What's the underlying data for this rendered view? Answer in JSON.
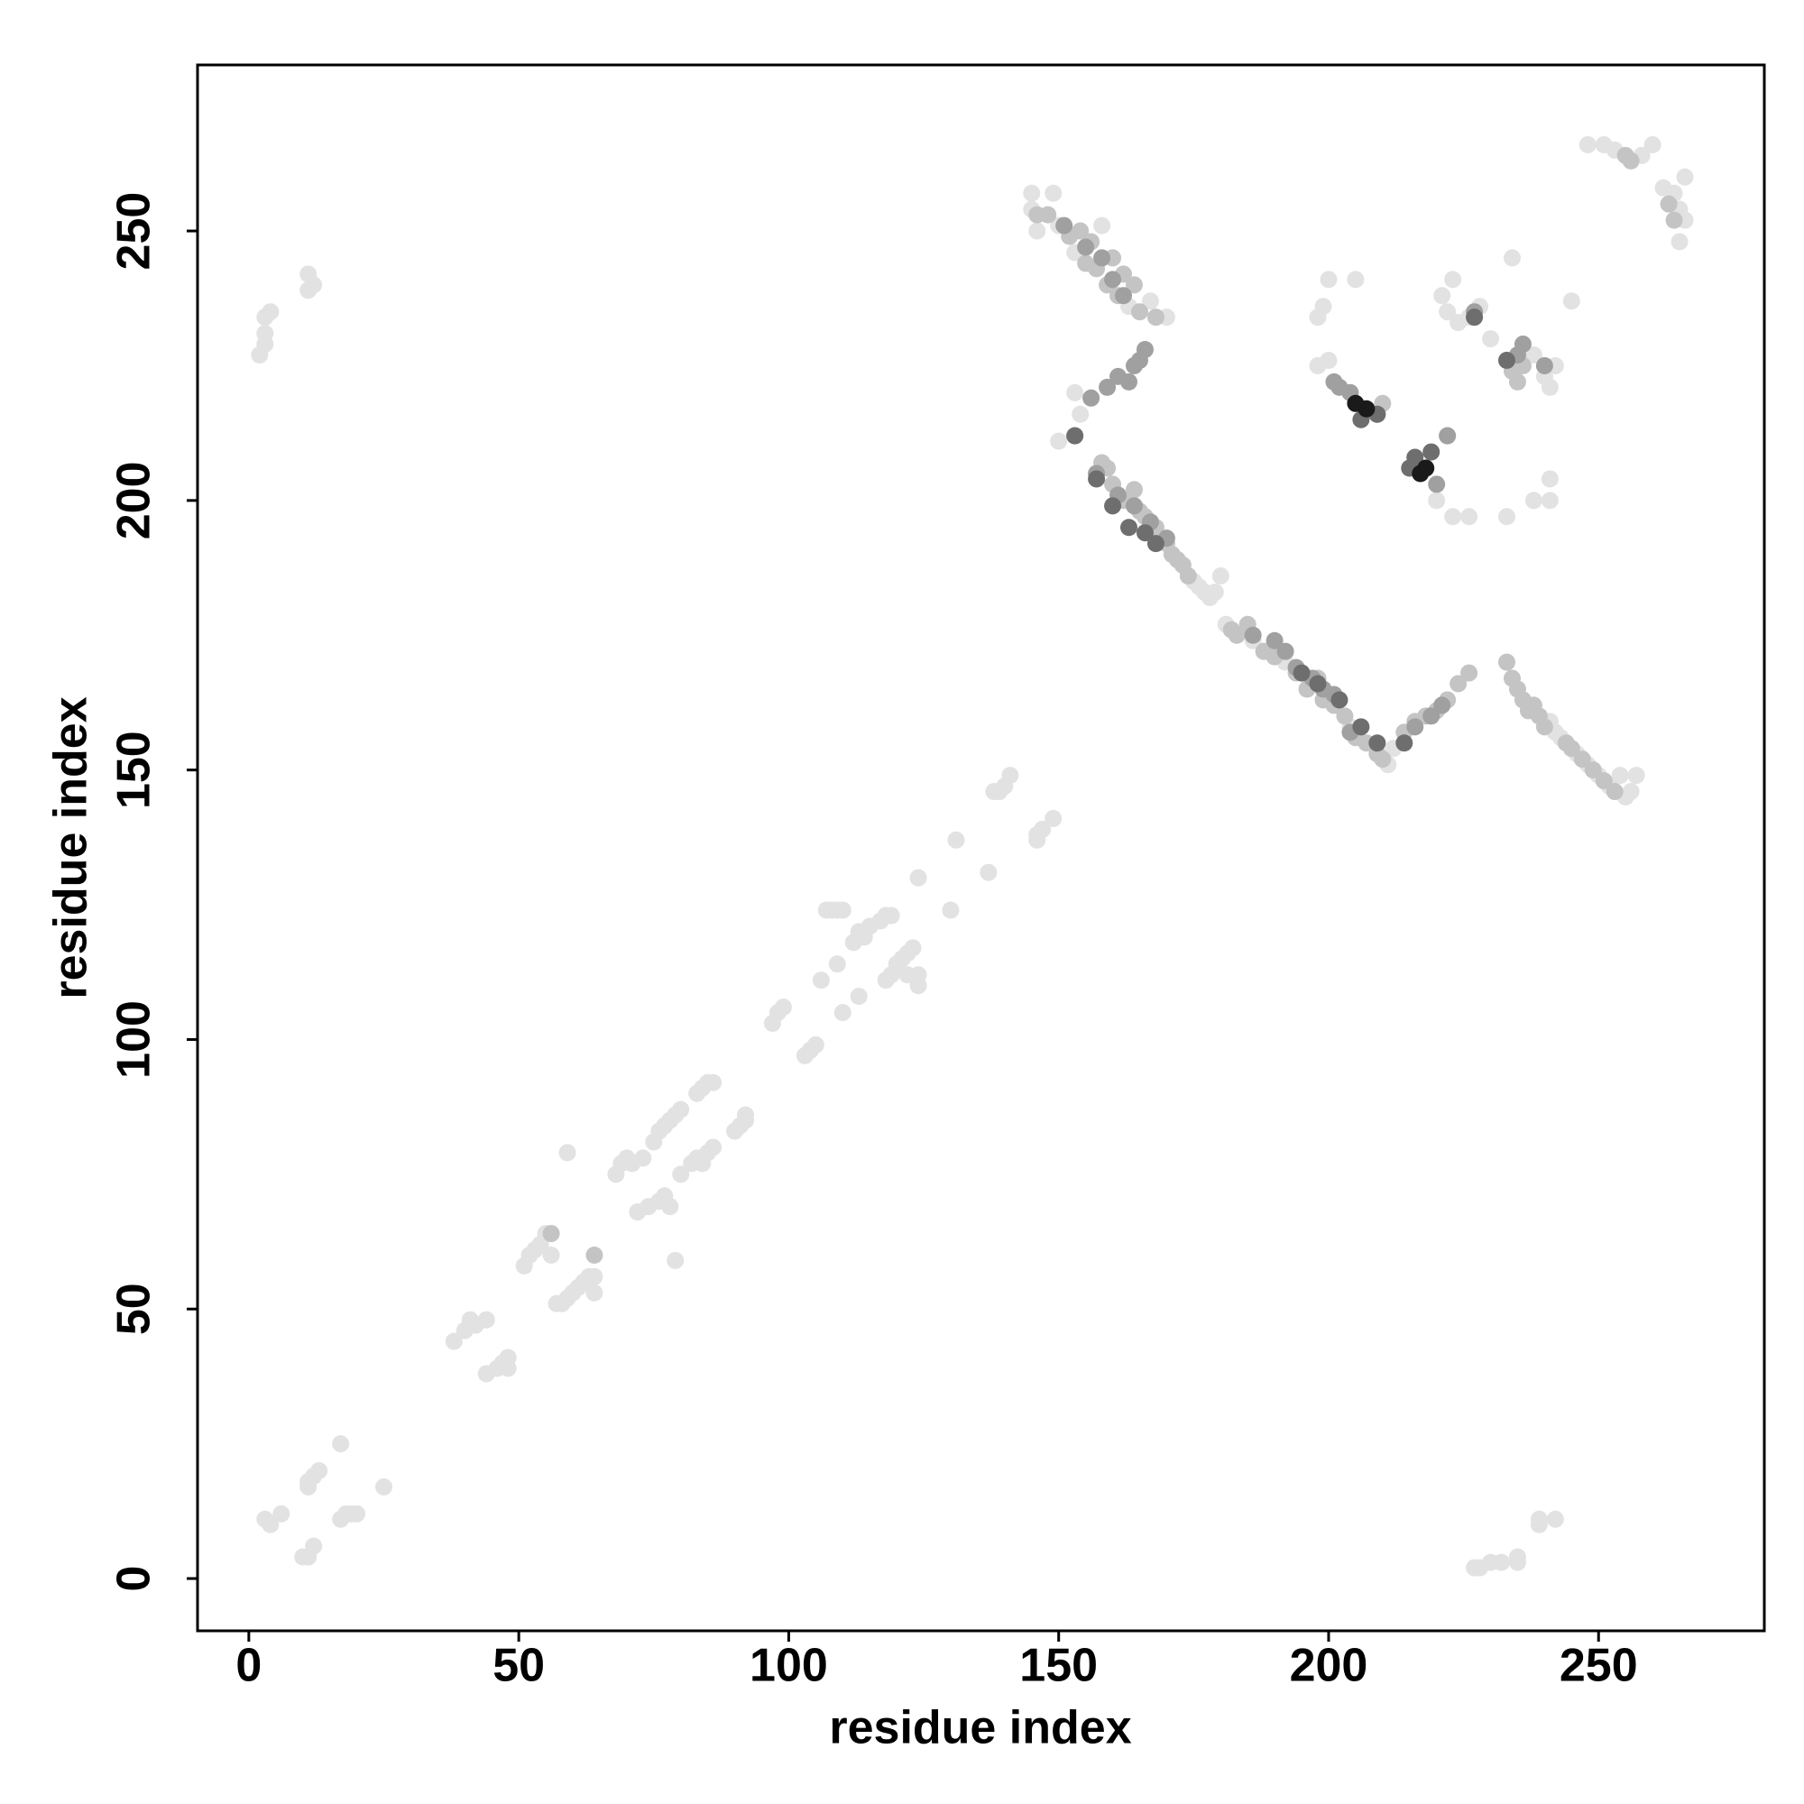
{
  "chart_data": {
    "type": "scatter",
    "xlabel": "residue index",
    "ylabel": "residue index",
    "xlim": [
      -9.5,
      280.7
    ],
    "ylim": [
      -9.7,
      280.8
    ],
    "xticks": [
      0,
      50,
      100,
      150,
      200,
      250
    ],
    "yticks": [
      0,
      50,
      100,
      150,
      200,
      250
    ],
    "grid": false,
    "series": [
      {
        "color": "#e2e2e2",
        "x": [
          4,
          6,
          3,
          11,
          12,
          13,
          11,
          17,
          25,
          17,
          19,
          20,
          18,
          10,
          11,
          12,
          2,
          3,
          3,
          4,
          3,
          11,
          11,
          12,
          227,
          228,
          230,
          232,
          235,
          235,
          239,
          239,
          242,
          38,
          40,
          41,
          42,
          44,
          44,
          46,
          47,
          48,
          48,
          51,
          52,
          53,
          54,
          55,
          56,
          57,
          58,
          59,
          60,
          61,
          62,
          63,
          64,
          64,
          59,
          79,
          68,
          69,
          70,
          71,
          73,
          75,
          76,
          77,
          78,
          79,
          80,
          83,
          84,
          85,
          86,
          72,
          74,
          76,
          77,
          78,
          80,
          82,
          83,
          84,
          85,
          86,
          90,
          91,
          92,
          92,
          97,
          98,
          99,
          103,
          104,
          105,
          106,
          109,
          110,
          113,
          107,
          108,
          109,
          110,
          112,
          113,
          115,
          117,
          118,
          119,
          114,
          118,
          119,
          120,
          121,
          122,
          123,
          124,
          124,
          122,
          130,
          124,
          131,
          137,
          138,
          139,
          140,
          141,
          146,
          146,
          147,
          149,
          145,
          145,
          146,
          149,
          150,
          153,
          158,
          163,
          167,
          170,
          150,
          153,
          154,
          186,
          192,
          204,
          211,
          212,
          241,
          242,
          243,
          246,
          248,
          250,
          252,
          254,
          255,
          256,
          257,
          200,
          205,
          198,
          199,
          221,
          223,
          222,
          224,
          226,
          228,
          230,
          233,
          238,
          240,
          241,
          242,
          226,
          223,
          233,
          238,
          241,
          241,
          234,
          245,
          220,
          200,
          198,
          248,
          251,
          253,
          258,
          260,
          262,
          264,
          265,
          266,
          266,
          265,
          175,
          176,
          177,
          178,
          179,
          180,
          181,
          182,
          183
        ],
        "values": [
          10,
          12,
          11,
          17,
          19,
          20,
          18,
          25,
          17,
          11,
          12,
          12,
          12,
          4,
          4,
          6,
          227,
          229,
          231,
          235,
          234,
          239,
          242,
          240,
          2,
          2,
          3,
          3,
          3,
          4,
          10,
          11,
          11,
          44,
          46,
          48,
          47,
          48,
          38,
          39,
          40,
          41,
          39,
          58,
          60,
          61,
          62,
          64,
          60,
          51,
          51,
          52,
          53,
          54,
          55,
          56,
          56,
          53,
          79,
          59,
          75,
          77,
          78,
          77,
          78,
          81,
          83,
          84,
          85,
          86,
          87,
          90,
          91,
          92,
          92,
          68,
          69,
          70,
          71,
          69,
          75,
          77,
          78,
          77,
          79,
          80,
          83,
          84,
          85,
          86,
          103,
          105,
          106,
          97,
          98,
          99,
          111,
          114,
          105,
          108,
          124,
          124,
          124,
          124,
          118,
          120,
          121,
          122,
          123,
          123,
          119,
          111,
          112,
          114,
          115,
          116,
          117,
          110,
          112,
          112,
          124,
          130,
          137,
          131,
          146,
          146,
          147,
          149,
          138,
          137,
          139,
          141,
          257,
          254,
          250,
          257,
          251,
          246,
          251,
          236,
          237,
          234,
          211,
          220,
          216,
          174,
          170,
          158,
          151,
          154,
          159,
          157,
          156,
          153,
          151,
          149,
          147,
          149,
          145,
          146,
          149,
          241,
          241,
          234,
          236,
          238,
          241,
          235,
          233,
          234,
          236,
          230,
          226,
          227,
          223,
          221,
          225,
          197,
          197,
          197,
          200,
          200,
          204,
          245,
          237,
          200,
          226,
          225,
          266,
          266,
          265,
          264,
          266,
          258,
          257,
          254,
          252,
          260,
          248,
          185,
          184,
          183,
          182,
          183,
          186,
          177,
          176,
          175
        ]
      },
      {
        "color": "#c4c4c4",
        "x": [
          146,
          148,
          152,
          154,
          155,
          156,
          157,
          159,
          160,
          161,
          162,
          164,
          165,
          168,
          157,
          158,
          159,
          160,
          162,
          164,
          165,
          166,
          167,
          168,
          169,
          170,
          171,
          172,
          173,
          174,
          182,
          183,
          185,
          188,
          190,
          194,
          196,
          198,
          199,
          200,
          201,
          203,
          205,
          207,
          209,
          210,
          214,
          216,
          218,
          220,
          222,
          224,
          226,
          233,
          234,
          235,
          236,
          237,
          238,
          239,
          240,
          244,
          245,
          247,
          249,
          251,
          253,
          204,
          210,
          222,
          234,
          235,
          236,
          263,
          264,
          255,
          256,
          56,
          64
        ],
        "values": [
          253,
          253,
          249,
          250,
          244,
          248,
          243,
          240,
          245,
          238,
          242,
          240,
          235,
          234,
          205,
          207,
          206,
          203,
          200,
          202,
          198,
          197,
          196,
          195,
          193,
          192,
          190,
          189,
          188,
          186,
          176,
          175,
          177,
          172,
          171,
          168,
          165,
          167,
          163,
          164,
          162,
          160,
          156,
          155,
          153,
          152,
          157,
          159,
          160,
          161,
          163,
          166,
          168,
          170,
          167,
          165,
          163,
          161,
          162,
          160,
          158,
          155,
          154,
          152,
          150,
          148,
          146,
          220,
          218,
          212,
          224,
          222,
          225,
          255,
          252,
          264,
          263,
          64,
          60
        ]
      },
      {
        "color": "#a0a0a0",
        "x": [
          151,
          155,
          160,
          162,
          164,
          166,
          153,
          156,
          159,
          161,
          163,
          165,
          157,
          161,
          164,
          167,
          170,
          186,
          190,
          192,
          194,
          197,
          199,
          201,
          204,
          216,
          219,
          221,
          235,
          236,
          240,
          204,
          209,
          222,
          220,
          158,
          201,
          202,
          227
        ],
        "values": [
          251,
          247,
          241,
          238,
          225,
          228,
          212,
          219,
          221,
          223,
          222,
          226,
          205,
          201,
          199,
          196,
          193,
          175,
          174,
          172,
          169,
          167,
          165,
          164,
          157,
          158,
          160,
          162,
          227,
          229,
          225,
          220,
          216,
          212,
          203,
          245,
          222,
          221,
          235
        ]
      },
      {
        "color": "#6e6e6e",
        "x": [
          153,
          157,
          160,
          163,
          166,
          168,
          195,
          198,
          202,
          206,
          209,
          214,
          206,
          209,
          215,
          216,
          219,
          227,
          233
        ],
        "values": [
          212,
          204,
          199,
          195,
          194,
          192,
          168,
          166,
          163,
          158,
          155,
          155,
          215,
          216,
          206,
          208,
          209,
          234,
          226
        ]
      },
      {
        "color": "#1a1a1a",
        "x": [
          207,
          205,
          218,
          217
        ],
        "values": [
          217,
          218,
          206,
          205
        ]
      }
    ]
  }
}
